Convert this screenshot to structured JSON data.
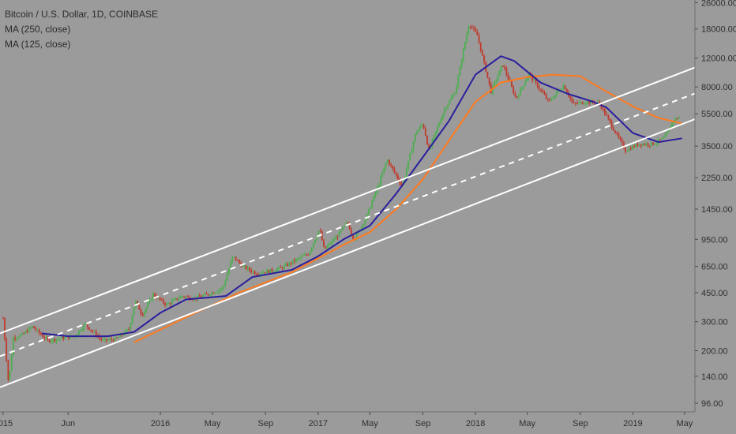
{
  "chart_title": "Bitcoin / U.S. Dollar, 1D, COINBASE",
  "indicators": [
    {
      "label": "MA (250, close)",
      "color": "#ff7a1f"
    },
    {
      "label": "MA (125, close)",
      "color": "#2a1f9c"
    }
  ],
  "colors": {
    "background": "#9b9b9b",
    "up_candle": "#4caf50",
    "down_candle": "#c0392b",
    "channel": "#ffffff",
    "axis_text": "#2f2f2f"
  },
  "chart_data": {
    "type": "line",
    "y_scale": "log",
    "ylim": [
      85,
      27000
    ],
    "x_range": [
      "2014-12-25",
      "2019-05-25"
    ],
    "y_ticks": [
      "26000.00",
      "18000.00",
      "12000.00",
      "8000.00",
      "5500.00",
      "3500.00",
      "2250.00",
      "1450.00",
      "950.00",
      "650.00",
      "450.00",
      "300.00",
      "200.00",
      "140.00",
      "96.00"
    ],
    "x_ticks": [
      {
        "label": "2015",
        "date": "2015-01-01"
      },
      {
        "label": "Jun",
        "date": "2015-06-01"
      },
      {
        "label": "2016",
        "date": "2016-01-01"
      },
      {
        "label": "May",
        "date": "2016-05-01"
      },
      {
        "label": "Sep",
        "date": "2016-09-01"
      },
      {
        "label": "2017",
        "date": "2017-01-01"
      },
      {
        "label": "May",
        "date": "2017-05-01"
      },
      {
        "label": "Sep",
        "date": "2017-09-01"
      },
      {
        "label": "2018",
        "date": "2018-01-01"
      },
      {
        "label": "May",
        "date": "2018-05-01"
      },
      {
        "label": "Sep",
        "date": "2018-09-01"
      },
      {
        "label": "2019",
        "date": "2019-01-01"
      },
      {
        "label": "May",
        "date": "2019-05-01"
      }
    ],
    "series": [
      {
        "name": "Bitcoin / U.S. Dollar",
        "style": "candles",
        "points": [
          [
            "2015-01-01",
            315
          ],
          [
            "2015-01-14",
            125
          ],
          [
            "2015-01-25",
            240
          ],
          [
            "2015-02-15",
            250
          ],
          [
            "2015-03-10",
            280
          ],
          [
            "2015-04-15",
            230
          ],
          [
            "2015-05-15",
            238
          ],
          [
            "2015-06-15",
            245
          ],
          [
            "2015-07-10",
            290
          ],
          [
            "2015-08-20",
            230
          ],
          [
            "2015-09-20",
            235
          ],
          [
            "2015-10-20",
            270
          ],
          [
            "2015-11-04",
            400
          ],
          [
            "2015-11-20",
            330
          ],
          [
            "2015-12-15",
            440
          ],
          [
            "2016-01-15",
            380
          ],
          [
            "2016-02-20",
            430
          ],
          [
            "2016-03-20",
            415
          ],
          [
            "2016-04-20",
            440
          ],
          [
            "2016-05-25",
            480
          ],
          [
            "2016-06-17",
            750
          ],
          [
            "2016-07-10",
            650
          ],
          [
            "2016-08-10",
            590
          ],
          [
            "2016-09-10",
            610
          ],
          [
            "2016-10-10",
            640
          ],
          [
            "2016-11-10",
            710
          ],
          [
            "2016-12-10",
            780
          ],
          [
            "2017-01-04",
            1100
          ],
          [
            "2017-01-15",
            820
          ],
          [
            "2017-02-15",
            1000
          ],
          [
            "2017-03-10",
            1200
          ],
          [
            "2017-03-25",
            950
          ],
          [
            "2017-04-20",
            1250
          ],
          [
            "2017-05-20",
            2000
          ],
          [
            "2017-06-10",
            2900
          ],
          [
            "2017-07-15",
            2000
          ],
          [
            "2017-08-15",
            4200
          ],
          [
            "2017-09-01",
            4800
          ],
          [
            "2017-09-15",
            3300
          ],
          [
            "2017-10-20",
            5800
          ],
          [
            "2017-11-15",
            7500
          ],
          [
            "2017-12-10",
            16000
          ],
          [
            "2017-12-17",
            19500
          ],
          [
            "2018-01-05",
            16500
          ],
          [
            "2018-02-06",
            7500
          ],
          [
            "2018-03-05",
            11000
          ],
          [
            "2018-04-05",
            6800
          ],
          [
            "2018-05-05",
            9600
          ],
          [
            "2018-06-20",
            6500
          ],
          [
            "2018-07-25",
            8200
          ],
          [
            "2018-08-15",
            6300
          ],
          [
            "2018-09-15",
            6500
          ],
          [
            "2018-10-15",
            6400
          ],
          [
            "2018-11-20",
            4300
          ],
          [
            "2018-12-15",
            3300
          ],
          [
            "2019-01-15",
            3600
          ],
          [
            "2019-02-15",
            3600
          ],
          [
            "2019-03-15",
            3900
          ],
          [
            "2019-04-05",
            5000
          ],
          [
            "2019-04-20",
            5300
          ]
        ]
      },
      {
        "name": "MA (250, close)",
        "color": "#ff7a1f",
        "points": [
          [
            "2015-11-01",
            225
          ],
          [
            "2016-03-01",
            320
          ],
          [
            "2016-07-01",
            450
          ],
          [
            "2016-11-01",
            600
          ],
          [
            "2017-03-01",
            880
          ],
          [
            "2017-05-01",
            1050
          ],
          [
            "2017-07-01",
            1450
          ],
          [
            "2017-09-01",
            2200
          ],
          [
            "2017-11-01",
            3800
          ],
          [
            "2018-01-01",
            6500
          ],
          [
            "2018-03-01",
            8500
          ],
          [
            "2018-05-01",
            9200
          ],
          [
            "2018-07-01",
            9500
          ],
          [
            "2018-09-01",
            9300
          ],
          [
            "2018-11-01",
            7500
          ],
          [
            "2019-01-01",
            6100
          ],
          [
            "2019-03-01",
            5200
          ],
          [
            "2019-04-25",
            4800
          ]
        ]
      },
      {
        "name": "MA (125, close)",
        "color": "#2a1f9c",
        "points": [
          [
            "2015-04-01",
            255
          ],
          [
            "2015-06-01",
            245
          ],
          [
            "2015-09-01",
            245
          ],
          [
            "2015-11-01",
            260
          ],
          [
            "2016-01-01",
            340
          ],
          [
            "2016-03-01",
            410
          ],
          [
            "2016-06-01",
            430
          ],
          [
            "2016-08-01",
            560
          ],
          [
            "2016-11-01",
            620
          ],
          [
            "2017-01-01",
            750
          ],
          [
            "2017-03-01",
            950
          ],
          [
            "2017-05-01",
            1150
          ],
          [
            "2017-07-01",
            1800
          ],
          [
            "2017-09-01",
            3000
          ],
          [
            "2017-11-01",
            5000
          ],
          [
            "2018-01-01",
            9500
          ],
          [
            "2018-03-01",
            12300
          ],
          [
            "2018-04-01",
            11500
          ],
          [
            "2018-06-01",
            8500
          ],
          [
            "2018-08-01",
            7300
          ],
          [
            "2018-10-01",
            6500
          ],
          [
            "2018-11-01",
            6000
          ],
          [
            "2019-01-01",
            4200
          ],
          [
            "2019-03-01",
            3700
          ],
          [
            "2019-04-25",
            3900
          ]
        ]
      },
      {
        "name": "Upper channel",
        "style": "channel",
        "points": [
          [
            "2014-12-25",
            255
          ],
          [
            "2019-05-25",
            10500
          ]
        ]
      },
      {
        "name": "Middle channel",
        "style": "channel-dashed",
        "points": [
          [
            "2014-12-25",
            185
          ],
          [
            "2019-05-25",
            7300
          ]
        ]
      },
      {
        "name": "Lower channel",
        "style": "channel",
        "points": [
          [
            "2014-12-25",
            120
          ],
          [
            "2019-05-25",
            5100
          ]
        ]
      }
    ]
  }
}
